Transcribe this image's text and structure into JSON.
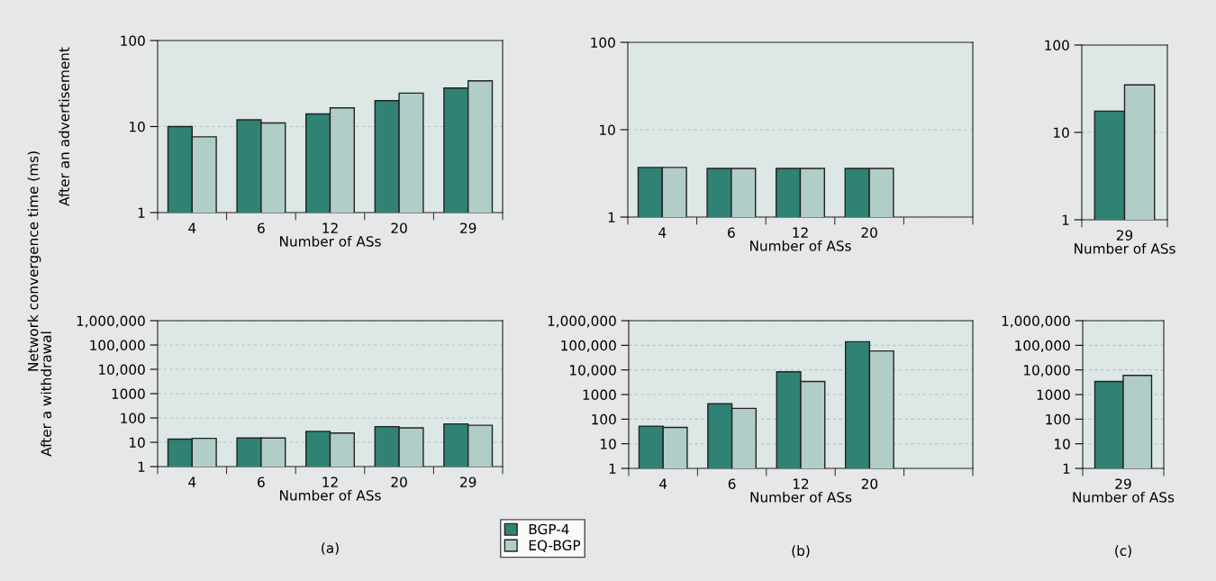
{
  "chart_data": [
    {
      "type": "bar",
      "ylabel": "After an advertisement",
      "xlabel": "Number of ASs",
      "categories": [
        "4",
        "6",
        "12",
        "20",
        "29"
      ],
      "log": "y",
      "grid": "y",
      "ylim": [
        1,
        100
      ],
      "yticks": [
        1,
        10,
        100
      ],
      "annotations": [
        "Network convergence time (ms)"
      ],
      "series": [
        {
          "color": "#2f8274",
          "values": [
            10,
            12,
            14,
            20,
            28
          ]
        },
        {
          "color": "#b0cdc7",
          "values": [
            7.6,
            11,
            16.5,
            24.5,
            34
          ]
        }
      ]
    },
    {
      "type": "bar",
      "xlabel": "Number of ASs",
      "categories": [
        "4",
        "6",
        "12",
        "20",
        null
      ],
      "log": "y",
      "grid": "y",
      "ylim": [
        1,
        100
      ],
      "yticks": [
        1,
        10,
        100
      ],
      "series": [
        {
          "color": "#2f8274",
          "values": [
            3.7,
            3.6,
            3.6,
            3.6,
            null
          ]
        },
        {
          "color": "#b0cdc7",
          "values": [
            3.7,
            3.6,
            3.6,
            3.6,
            null
          ]
        }
      ]
    },
    {
      "type": "bar",
      "xlabel": "Number of ASs",
      "categories": [
        "29"
      ],
      "log": "y",
      "grid": "y",
      "ylim": [
        1,
        100
      ],
      "yticks": [
        1,
        10,
        100
      ],
      "series": [
        {
          "color": "#2f8274",
          "values": [
            17.5
          ]
        },
        {
          "color": "#b0cdc7",
          "values": [
            35
          ]
        }
      ]
    },
    {
      "type": "bar",
      "ylabel": "After a withdrawal",
      "xlabel": "Number of ASs",
      "categories": [
        "4",
        "6",
        "12",
        "20",
        "29"
      ],
      "log": "y",
      "grid": "y",
      "ylim": [
        1,
        1000000
      ],
      "yticks": [
        1,
        10,
        100,
        1000,
        {
          "value": 10000,
          "label": "10,000"
        },
        {
          "value": 100000,
          "label": "100,000"
        },
        {
          "value": 1000000,
          "label": "1,000,000"
        }
      ],
      "annotations": [
        "(a)"
      ],
      "series": [
        {
          "color": "#2f8274",
          "values": [
            13.4,
            15,
            28,
            44,
            57
          ]
        },
        {
          "color": "#b0cdc7",
          "values": [
            14.5,
            15,
            24,
            39,
            50
          ]
        }
      ]
    },
    {
      "type": "bar",
      "xlabel": "Number of ASs",
      "categories": [
        "4",
        "6",
        "12",
        "20",
        null
      ],
      "log": "y",
      "grid": "y",
      "ylim": [
        1,
        1000000
      ],
      "yticks": [
        1,
        10,
        100,
        1000,
        {
          "value": 10000,
          "label": "10,000"
        },
        {
          "value": 100000,
          "label": "100,000"
        },
        {
          "value": 1000000,
          "label": "1,000,000"
        }
      ],
      "annotations": [
        "(b)"
      ],
      "legend": "bottom left",
      "series": [
        {
          "name": "BGP-4",
          "color": "#2f8274",
          "values": [
            52,
            420,
            8400,
            140000,
            null
          ]
        },
        {
          "name": "EQ-BGP",
          "color": "#b0cdc7",
          "values": [
            46,
            275,
            3400,
            59000,
            null
          ]
        }
      ]
    },
    {
      "type": "bar",
      "xlabel": "Number of ASs",
      "categories": [
        "29"
      ],
      "log": "y",
      "grid": "y",
      "ylim": [
        1,
        1000000
      ],
      "yticks": [
        1,
        10,
        100,
        1000,
        {
          "value": 10000,
          "label": "10,000"
        },
        {
          "value": 100000,
          "label": "100,000"
        },
        {
          "value": 1000000,
          "label": "1,000,000"
        }
      ],
      "annotations": [
        "(c)"
      ],
      "series": [
        {
          "color": "#2f8274",
          "values": [
            3400
          ]
        },
        {
          "color": "#b0cdc7",
          "values": [
            6000
          ]
        }
      ]
    }
  ]
}
